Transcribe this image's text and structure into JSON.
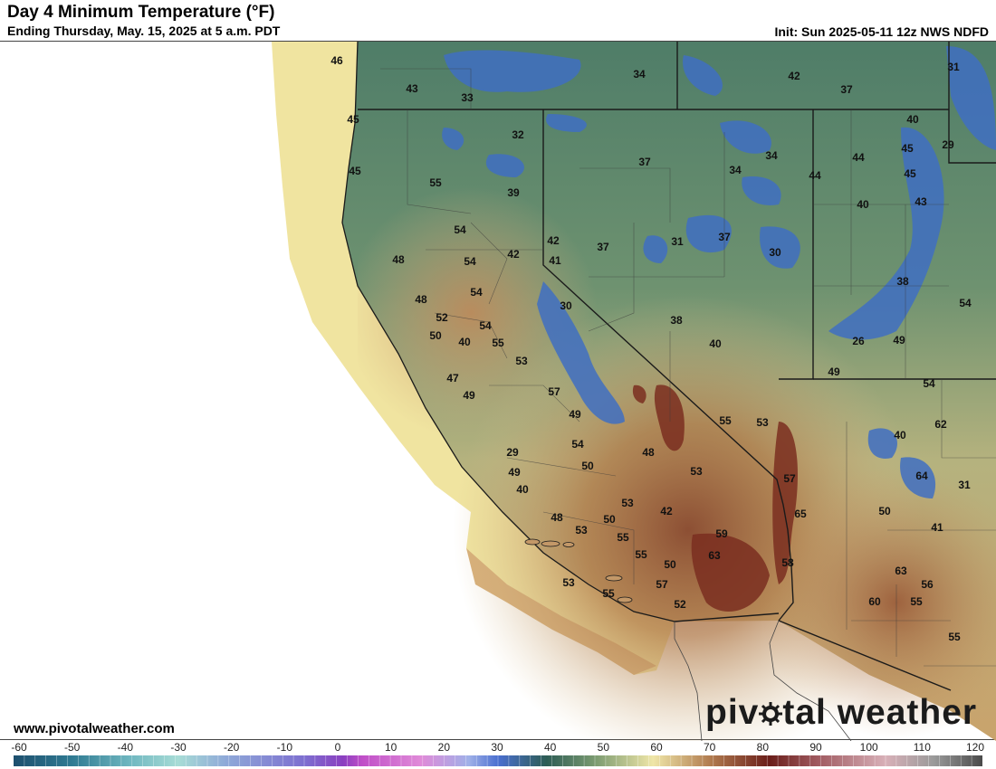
{
  "header": {
    "title": "Day 4 Minimum Temperature (°F)",
    "subtitle": "Ending Thursday, May. 15, 2025 at 5 a.m. PDT",
    "init": "Init: Sun 2025-05-11 12z NWS NDFD"
  },
  "footer": {
    "website": "www.pivotalweather.com",
    "logo_prefix": "piv",
    "logo_suffix": "tal weather"
  },
  "colorbar": {
    "ticks": [
      "-60",
      "-50",
      "-40",
      "-30",
      "-20",
      "-10",
      "0",
      "10",
      "20",
      "30",
      "40",
      "50",
      "60",
      "70",
      "80",
      "90",
      "100",
      "110",
      "120"
    ]
  },
  "map_labels": [
    "46",
    "43",
    "33",
    "34",
    "42",
    "37",
    "31",
    "45",
    "32",
    "40",
    "29",
    "45",
    "37",
    "45",
    "44",
    "55",
    "39",
    "44",
    "45",
    "34",
    "34",
    "54",
    "40",
    "43",
    "42",
    "37",
    "31",
    "37",
    "54",
    "42",
    "41",
    "30",
    "48",
    "54",
    "38",
    "48",
    "30",
    "54",
    "52",
    "54",
    "38",
    "50",
    "55",
    "40",
    "26",
    "49",
    "40",
    "49",
    "53",
    "54",
    "47",
    "57",
    "49",
    "49",
    "55",
    "53",
    "62",
    "40",
    "29",
    "48",
    "54",
    "53",
    "50",
    "57",
    "64",
    "31",
    "40",
    "49",
    "50",
    "42",
    "48",
    "53",
    "50",
    "65",
    "41",
    "53",
    "55",
    "59",
    "55",
    "50",
    "63",
    "58",
    "63",
    "56",
    "53",
    "55",
    "57",
    "60",
    "55",
    "52",
    "55"
  ]
}
